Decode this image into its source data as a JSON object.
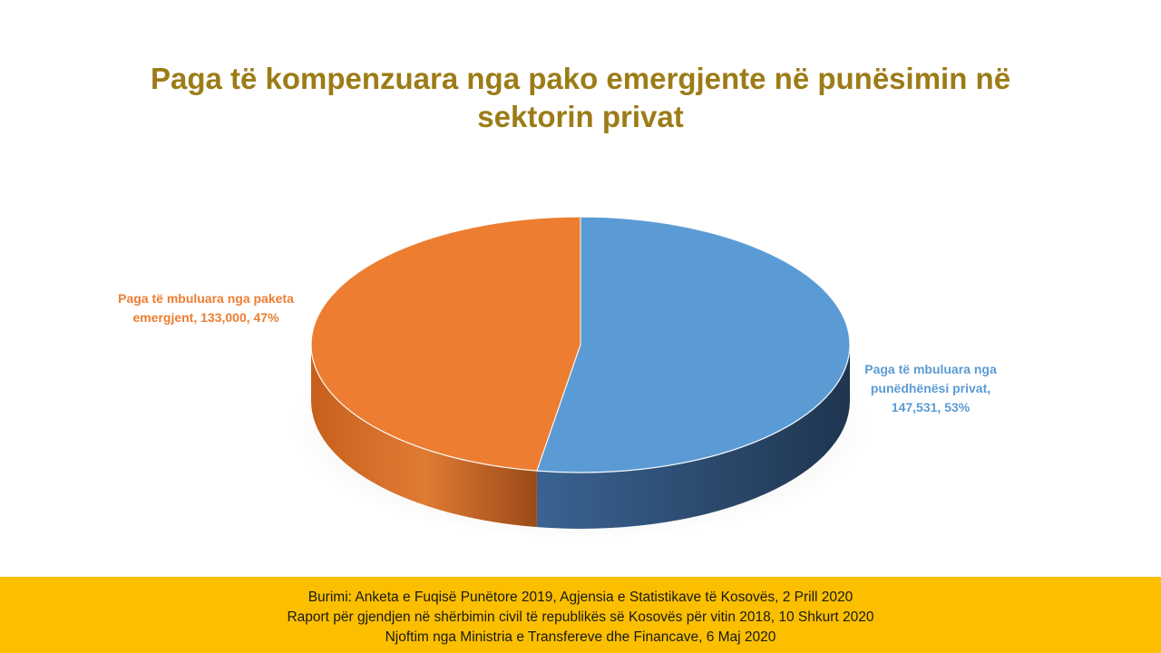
{
  "chart_data": {
    "type": "pie",
    "title": "Paga të kompenzuara nga pako emergjente në punësimin në sektorin privat",
    "slices": [
      {
        "name": "Paga të mbuluara nga punëdhënësi privat",
        "value": 147531,
        "percent": 53,
        "color": "#5b9bd5",
        "label_lines": [
          "Paga të mbuluara nga",
          "punëdhënësi privat,",
          "147,531, 53%"
        ]
      },
      {
        "name": "Paga të mbuluara nga paketa emergjent",
        "value": 133000,
        "percent": 47,
        "color": "#ed7d31",
        "label_lines": [
          "Paga të mbuluara nga paketa",
          "emergjent, 133,000, 47%"
        ]
      }
    ]
  },
  "title": {
    "line1": "Paga të kompenzuara nga pako emergjente në punësimin në",
    "line2": "sektorin privat"
  },
  "footer": {
    "lines": [
      "Burimi: Anketa e Fuqisë Punëtore 2019, Agjensia e Statistikave të Kosovës, 2 Prill 2020",
      "Raport për gjendjen në shërbimin civil të republikës së Kosovës për vitin 2018, 10 Shkurt 2020",
      "Njoftim nga Ministria e Transfereve dhe Financave, 6 Maj 2020"
    ]
  }
}
